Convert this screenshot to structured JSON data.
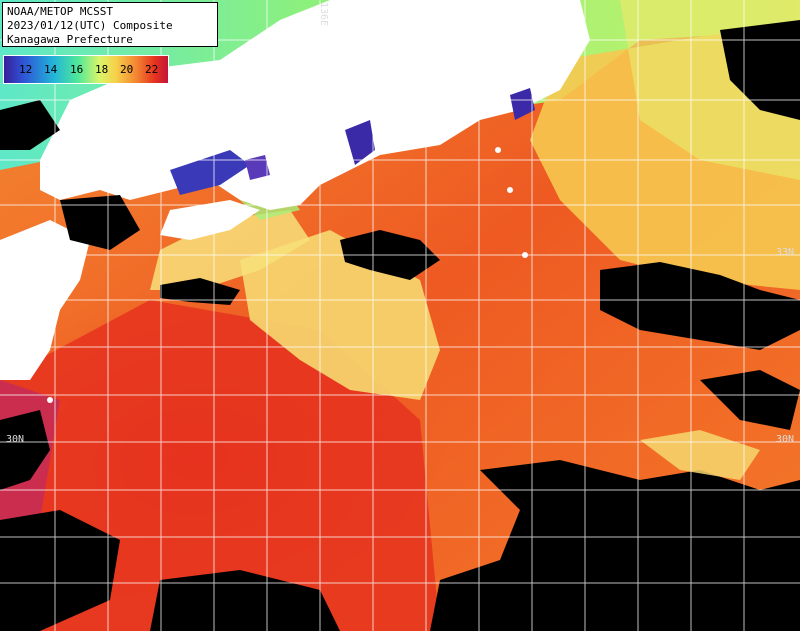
{
  "title": {
    "line1": "NOAA/METOP MCSST",
    "line2": "2023/01/12(UTC) Composite",
    "line3": "Kanagawa Prefecture"
  },
  "legend": {
    "labels": [
      "12",
      "14",
      "16",
      "18",
      "20",
      "22"
    ]
  },
  "grid": {
    "lon_label": "136E",
    "lat_label_33": "33N",
    "lat_label_30_left": "30N",
    "lat_label_30_right": "30N"
  },
  "colors": {
    "land": "#ffffff",
    "cloud": "#000000",
    "warm_sea": "#e8321c",
    "mid_sea": "#f47a2a",
    "cool_sea": "#f6c850",
    "cold_sea": "#5ee89a",
    "coldest": "#3a2aa8",
    "grid": "#ffffff"
  }
}
